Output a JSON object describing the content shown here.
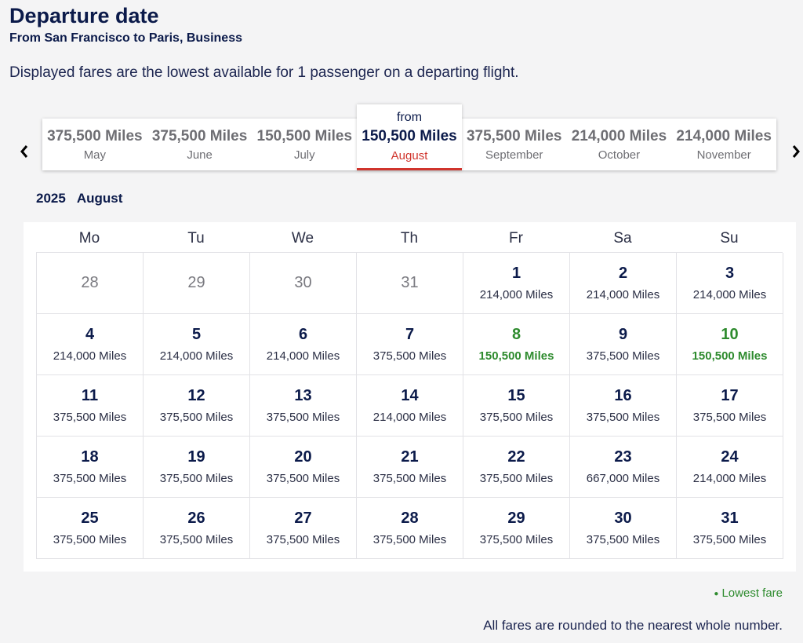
{
  "header": {
    "title": "Departure date",
    "subtitle": "From San Francisco to Paris, Business",
    "notice": "Displayed fares are the lowest available for 1 passenger on a departing flight."
  },
  "month_carousel": {
    "prev_icon": "chevron-left-icon",
    "next_icon": "chevron-right-icon",
    "months": [
      {
        "price": "375,500 Miles",
        "name": "May"
      },
      {
        "price": "375,500 Miles",
        "name": "June"
      },
      {
        "price": "150,500 Miles",
        "name": "July"
      },
      {
        "from": "from",
        "price": "150,500 Miles",
        "name": "August",
        "selected": true
      },
      {
        "price": "375,500 Miles",
        "name": "September"
      },
      {
        "price": "214,000 Miles",
        "name": "October"
      },
      {
        "price": "214,000 Miles",
        "name": "November"
      }
    ]
  },
  "calendar": {
    "year": "2025",
    "month": "August",
    "weekdays": [
      "Mo",
      "Tu",
      "We",
      "Th",
      "Fr",
      "Sa",
      "Su"
    ],
    "days": [
      {
        "day": "28",
        "price": "",
        "outside": true
      },
      {
        "day": "29",
        "price": "",
        "outside": true
      },
      {
        "day": "30",
        "price": "",
        "outside": true
      },
      {
        "day": "31",
        "price": "",
        "outside": true
      },
      {
        "day": "1",
        "price": "214,000 Miles"
      },
      {
        "day": "2",
        "price": "214,000 Miles"
      },
      {
        "day": "3",
        "price": "214,000 Miles"
      },
      {
        "day": "4",
        "price": "214,000 Miles"
      },
      {
        "day": "5",
        "price": "214,000 Miles"
      },
      {
        "day": "6",
        "price": "214,000 Miles"
      },
      {
        "day": "7",
        "price": "375,500 Miles"
      },
      {
        "day": "8",
        "price": "150,500 Miles",
        "lowest": true
      },
      {
        "day": "9",
        "price": "375,500 Miles"
      },
      {
        "day": "10",
        "price": "150,500 Miles",
        "lowest": true
      },
      {
        "day": "11",
        "price": "375,500 Miles"
      },
      {
        "day": "12",
        "price": "375,500 Miles"
      },
      {
        "day": "13",
        "price": "375,500 Miles"
      },
      {
        "day": "14",
        "price": "214,000 Miles"
      },
      {
        "day": "15",
        "price": "375,500 Miles"
      },
      {
        "day": "16",
        "price": "375,500 Miles"
      },
      {
        "day": "17",
        "price": "375,500 Miles"
      },
      {
        "day": "18",
        "price": "375,500 Miles"
      },
      {
        "day": "19",
        "price": "375,500 Miles"
      },
      {
        "day": "20",
        "price": "375,500 Miles"
      },
      {
        "day": "21",
        "price": "375,500 Miles"
      },
      {
        "day": "22",
        "price": "375,500 Miles"
      },
      {
        "day": "23",
        "price": "667,000 Miles"
      },
      {
        "day": "24",
        "price": "214,000 Miles"
      },
      {
        "day": "25",
        "price": "375,500 Miles"
      },
      {
        "day": "26",
        "price": "375,500 Miles"
      },
      {
        "day": "27",
        "price": "375,500 Miles"
      },
      {
        "day": "28",
        "price": "375,500 Miles"
      },
      {
        "day": "29",
        "price": "375,500 Miles"
      },
      {
        "day": "30",
        "price": "375,500 Miles"
      },
      {
        "day": "31",
        "price": "375,500 Miles"
      }
    ]
  },
  "legend": {
    "lowest_fare": "Lowest fare"
  },
  "footnote": "All fares are rounded to the nearest whole number.",
  "colors": {
    "lowest": "#2e8b2e",
    "selected_accent": "#d0342c",
    "primary_text": "#0b1a4a"
  }
}
